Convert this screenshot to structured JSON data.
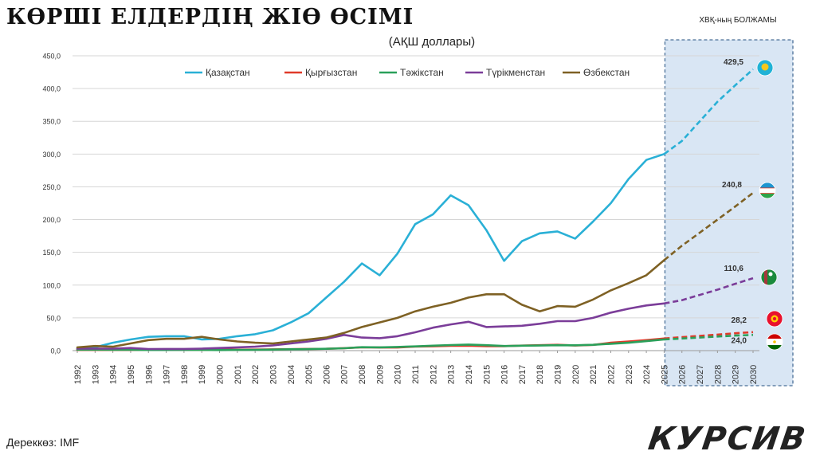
{
  "title": "КӨРШІ ЕЛДЕРДІҢ ЖІӨ ӨСІМІ",
  "subtitle": "(АҚШ доллары)",
  "forecast_label": "ХВҚ-ның БОЛЖАМЫ",
  "source": "Дереккөз: IMF",
  "logo": "КУРСИВ",
  "chart_data": {
    "type": "line",
    "title": "КӨРШІ ЕЛДЕРДІҢ ЖІӨ ӨСІМІ",
    "subtitle": "(АҚШ доллары)",
    "x": [
      1992,
      1993,
      1994,
      1995,
      1996,
      1997,
      1998,
      1999,
      2000,
      2001,
      2002,
      2003,
      2004,
      2005,
      2006,
      2007,
      2008,
      2009,
      2010,
      2011,
      2012,
      2013,
      2014,
      2015,
      2016,
      2017,
      2018,
      2019,
      2020,
      2021,
      2022,
      2023,
      2024,
      2025,
      2026,
      2027,
      2028,
      2029,
      2030
    ],
    "forecast_start": 2025,
    "ylim": [
      0,
      450
    ],
    "yticks": [
      0,
      50,
      100,
      150,
      200,
      250,
      300,
      350,
      400,
      450
    ],
    "ytick_labels": [
      "0,0",
      "50,0",
      "100,0",
      "150,0",
      "200,0",
      "250,0",
      "300,0",
      "350,0",
      "400,0",
      "450,0"
    ],
    "grid": true,
    "legend_position": "top",
    "series": [
      {
        "name": "Қазақстан",
        "color": "#2ab0d6",
        "flag": "kz",
        "end_label": "429,5",
        "values": [
          3,
          5,
          12,
          17,
          21,
          22,
          22,
          17,
          18,
          22,
          25,
          31,
          43,
          57,
          81,
          105,
          133,
          115,
          148,
          193,
          208,
          237,
          222,
          184,
          137,
          167,
          179,
          182,
          171,
          197,
          225,
          262,
          291,
          300,
          320,
          350,
          380,
          405,
          429.5
        ]
      },
      {
        "name": "Қырғызстан",
        "color": "#e03a2a",
        "flag": "kg",
        "end_label": "28,2",
        "values": [
          1,
          1,
          1,
          1,
          1.5,
          1.5,
          1.5,
          1.2,
          1.4,
          1.5,
          1.6,
          1.9,
          2.2,
          2.5,
          2.8,
          3.8,
          5.1,
          4.7,
          4.8,
          6.2,
          6.6,
          7.3,
          7.5,
          6.7,
          6.8,
          7.7,
          8.3,
          8.9,
          7.8,
          8.7,
          12,
          13.9,
          16,
          18.5,
          20.5,
          22.5,
          24.5,
          26.5,
          28.2
        ]
      },
      {
        "name": "Тәжікстан",
        "color": "#2aa05a",
        "flag": "tj",
        "end_label": "24,0",
        "values": [
          1.5,
          1.5,
          1.2,
          1.2,
          1.0,
          1.0,
          1.3,
          1.1,
          0.9,
          1.1,
          1.2,
          1.6,
          2.1,
          2.3,
          2.8,
          3.7,
          5.2,
          5.0,
          5.6,
          6.5,
          7.6,
          8.5,
          9.2,
          8.3,
          7.0,
          7.5,
          7.8,
          8.3,
          8.1,
          8.9,
          10.5,
          12,
          14.5,
          17,
          18.5,
          20,
          21.5,
          23,
          24
        ]
      },
      {
        "name": "Түрікменстан",
        "color": "#7b3d99",
        "flag": "tm",
        "end_label": "110,6",
        "values": [
          3,
          3,
          3,
          4,
          2.4,
          2.6,
          2.6,
          3,
          4,
          5,
          6,
          8,
          11,
          14,
          18,
          24,
          20,
          19,
          22,
          28,
          35,
          40,
          44,
          36,
          37,
          38,
          41,
          45,
          45,
          50,
          58,
          64,
          69,
          72,
          77,
          85,
          93,
          102,
          110.6
        ]
      },
      {
        "name": "Өзбекстан",
        "color": "#7e6124",
        "flag": "uz",
        "end_label": "240,8",
        "values": [
          5,
          7,
          6,
          11,
          16,
          18,
          18,
          21,
          17,
          14,
          12,
          11,
          14,
          17,
          20,
          27,
          36,
          43,
          50,
          60,
          67,
          73,
          81,
          86,
          86,
          70,
          60,
          68,
          67,
          78,
          92,
          103,
          115,
          138,
          160,
          180,
          200,
          220,
          240.8
        ]
      }
    ]
  }
}
